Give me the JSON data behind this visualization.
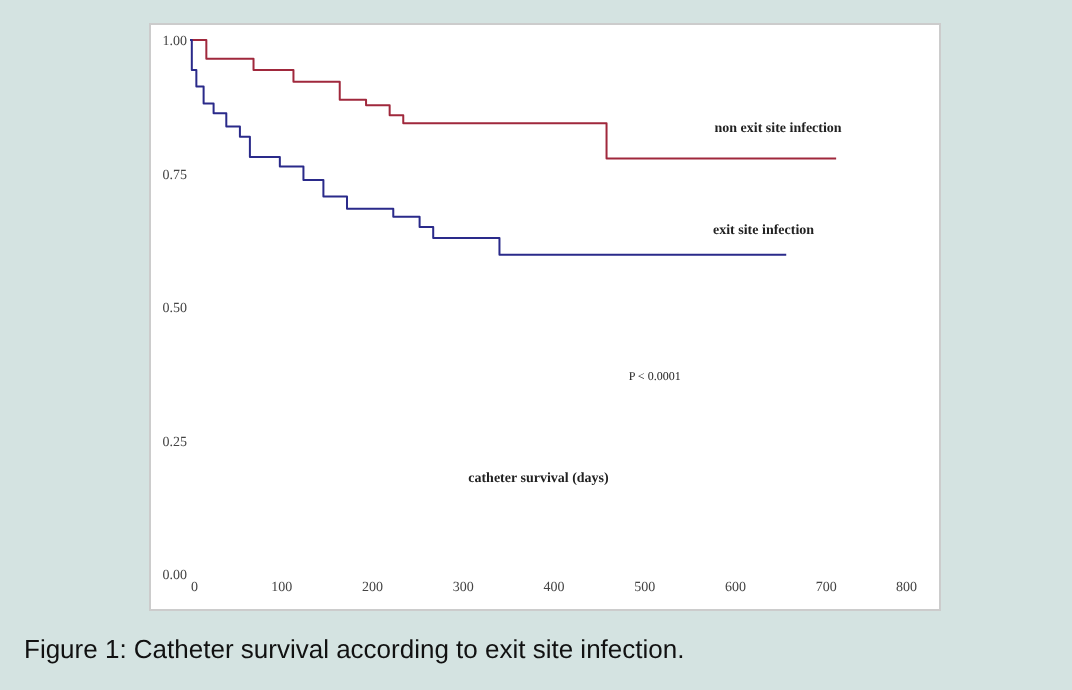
{
  "chart_data": {
    "type": "step",
    "title": "Figure 1: Catheter survival according to exit site infection.",
    "annotations": [
      "P < 0.0001",
      "catheter survival (days)"
    ],
    "xlim": [
      0,
      800
    ],
    "xticks": [
      0,
      100,
      200,
      300,
      400,
      500,
      600,
      700,
      800
    ],
    "ylim": [
      0,
      1
    ],
    "yticks": [
      {
        "value": 0,
        "label": "0.00"
      },
      {
        "value": 0.25,
        "label": "0.25"
      },
      {
        "value": 0.5,
        "label": "0.50"
      },
      {
        "value": 0.75,
        "label": "0.75"
      },
      {
        "value": 1,
        "label": "1.00"
      }
    ],
    "series": [
      {
        "name": "non exit site infection",
        "color": "#a0283c",
        "x": [
          0,
          18,
          70,
          114,
          165,
          194,
          220,
          235,
          459,
          712
        ],
        "values": [
          1.0,
          0.965,
          0.944,
          0.922,
          0.888,
          0.878,
          0.859,
          0.844,
          0.778,
          0.778
        ]
      },
      {
        "name": "exit site infection",
        "color": "#2a2a8a",
        "x": [
          0,
          2,
          7,
          15,
          26,
          40,
          55,
          66,
          99,
          125,
          147,
          173,
          224,
          253,
          268,
          341,
          657
        ],
        "values": [
          1.0,
          0.944,
          0.913,
          0.881,
          0.863,
          0.838,
          0.819,
          0.781,
          0.763,
          0.738,
          0.707,
          0.684,
          0.669,
          0.65,
          0.629,
          0.598,
          0.598
        ]
      }
    ]
  }
}
